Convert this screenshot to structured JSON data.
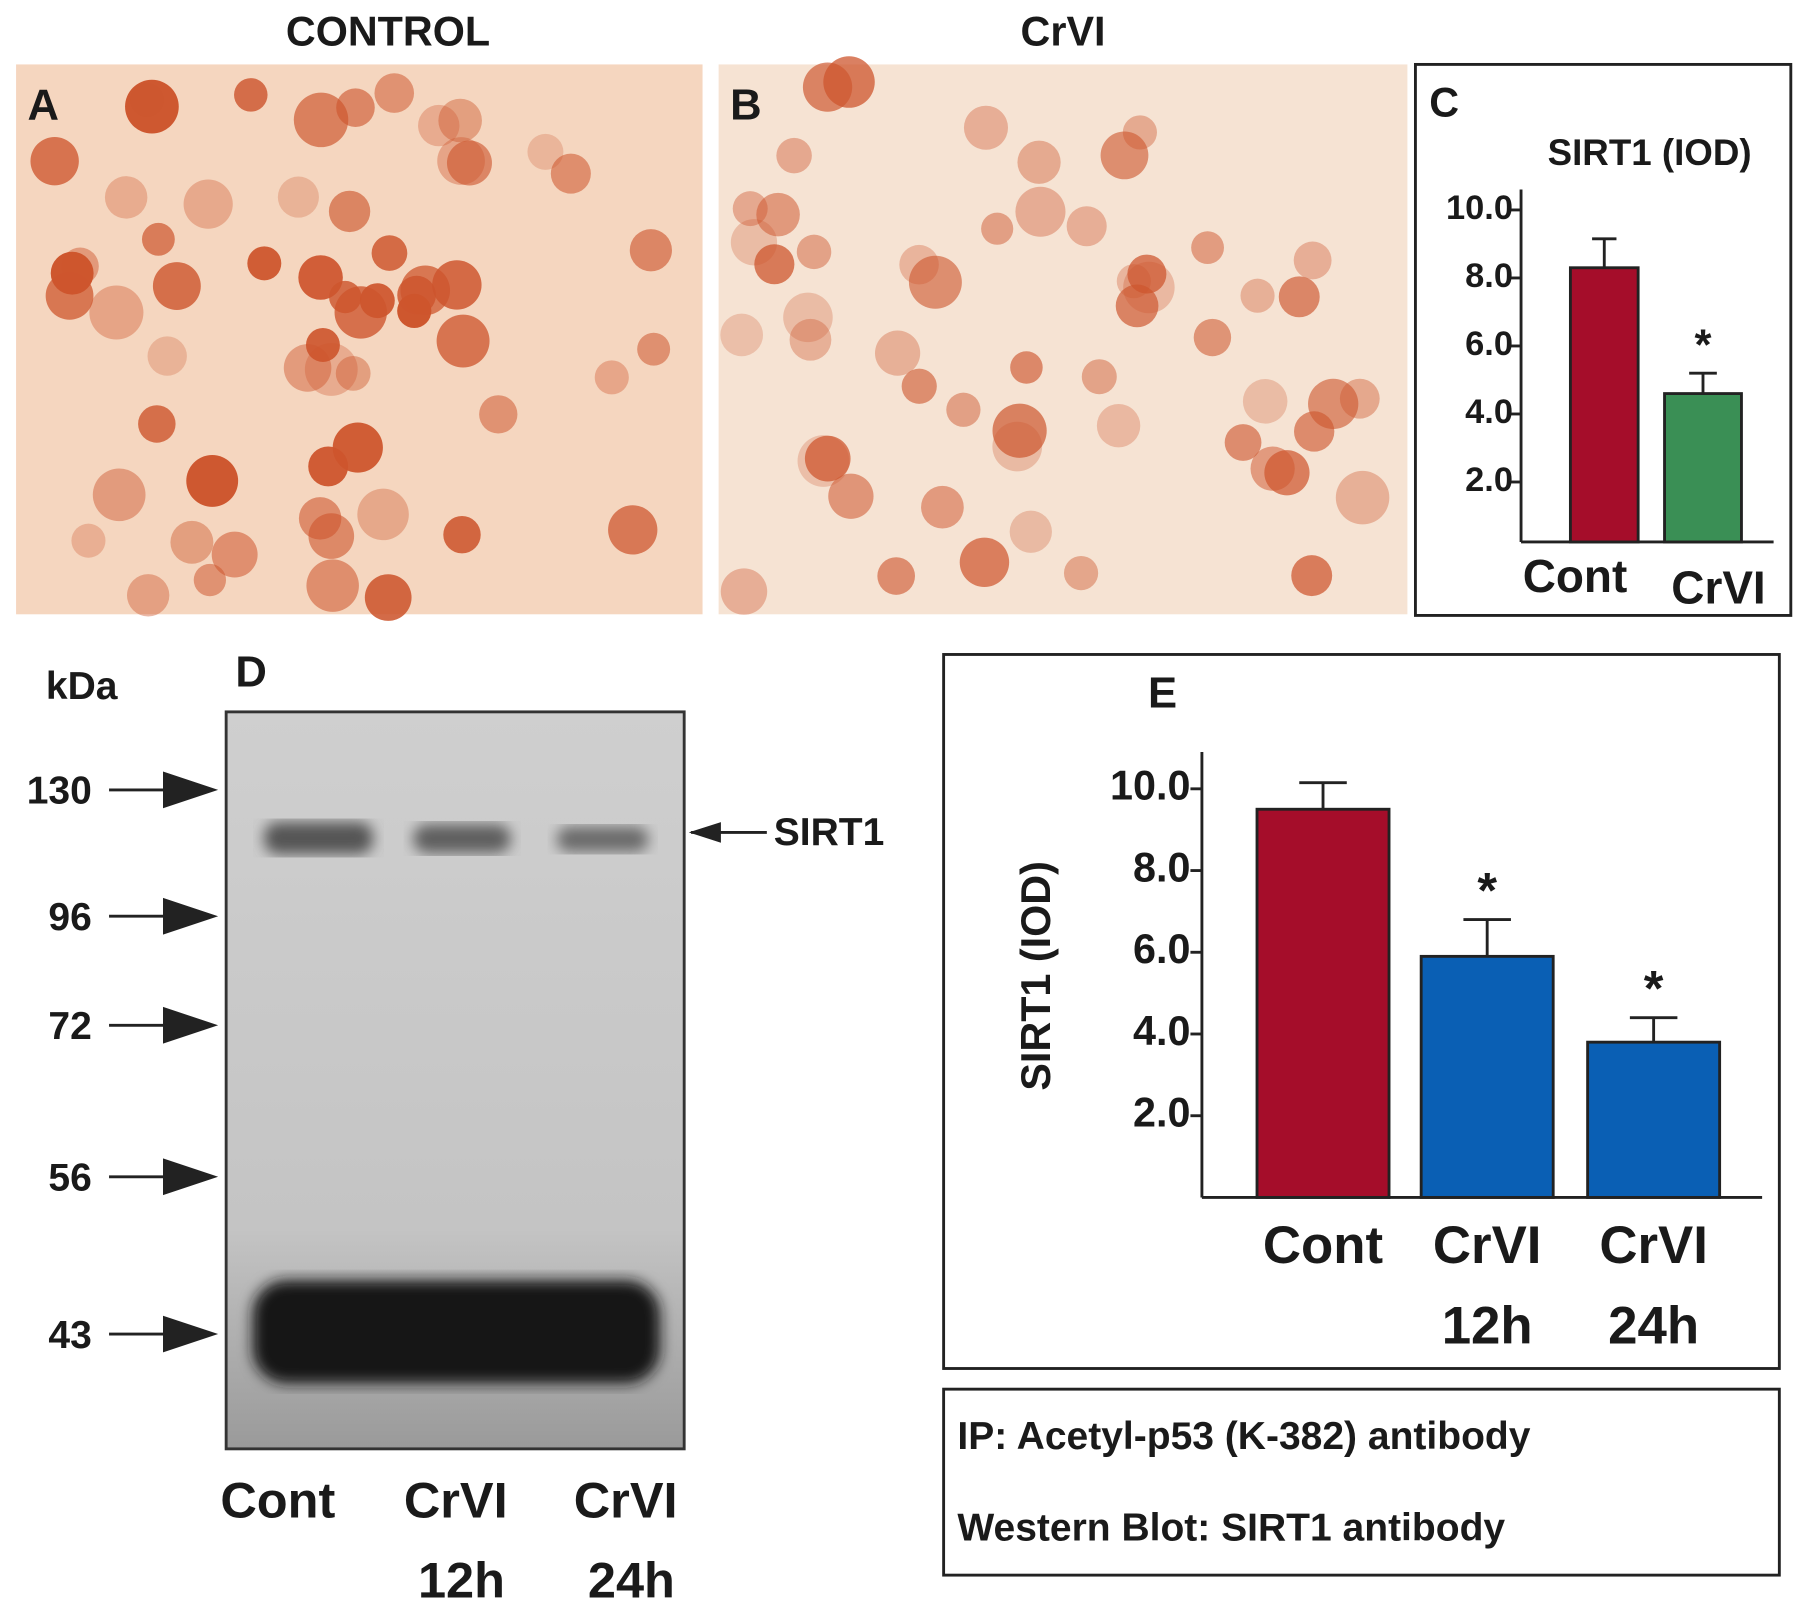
{
  "panels": {
    "a": {
      "letter": "A",
      "header": "CONTROL"
    },
    "b": {
      "letter": "B",
      "header": "CrVI"
    },
    "c": {
      "letter": "C"
    },
    "d": {
      "letter": "D"
    },
    "e": {
      "letter": "E"
    }
  },
  "blot": {
    "unit": "kDa",
    "markers": [
      "130",
      "96",
      "72",
      "56",
      "43"
    ],
    "band_label": "SIRT1",
    "lanes": [
      [
        "Cont"
      ],
      [
        "CrVI",
        "12h"
      ],
      [
        "CrVI",
        "24h"
      ]
    ]
  },
  "method": {
    "ip": "IP: Acetyl-p53 (K-382) antibody",
    "wb": "Western Blot: SIRT1  antibody"
  },
  "chart_data": [
    {
      "type": "bar",
      "title": "SIRT1 (IOD)",
      "categories": [
        [
          "Cont"
        ],
        [
          "CrVI"
        ]
      ],
      "values": [
        8.3,
        4.6
      ],
      "errors": [
        0.85,
        0.6
      ],
      "colors": [
        "#a50d2a",
        "#3a8f55"
      ],
      "annotations": [
        null,
        "*"
      ],
      "ylim": [
        0,
        10.6
      ],
      "yticks": [
        {
          "value": 2,
          "label": "2.0"
        },
        {
          "value": 4,
          "label": "4.0"
        },
        {
          "value": 6,
          "label": "6.0"
        },
        {
          "value": 8,
          "label": "8.0"
        },
        {
          "value": 10,
          "label": "10.0"
        }
      ]
    },
    {
      "type": "bar",
      "y_label": "SIRT1 (IOD)",
      "categories": [
        [
          "Cont"
        ],
        [
          "CrVI",
          "12h"
        ],
        [
          "CrVI",
          "24h"
        ]
      ],
      "values": [
        9.5,
        5.9,
        3.8
      ],
      "errors": [
        0.65,
        0.9,
        0.6
      ],
      "colors": [
        "#a50d2a",
        "#0a5fb4",
        "#0a5fb4"
      ],
      "annotations": [
        null,
        "*",
        "*"
      ],
      "ylim": [
        0,
        10.9
      ],
      "yticks": [
        {
          "value": 2,
          "label": "2.0"
        },
        {
          "value": 4,
          "label": "4.0"
        },
        {
          "value": 6,
          "label": "6.0"
        },
        {
          "value": 8,
          "label": "8.0"
        },
        {
          "value": 10,
          "label": "10.0"
        }
      ]
    }
  ]
}
